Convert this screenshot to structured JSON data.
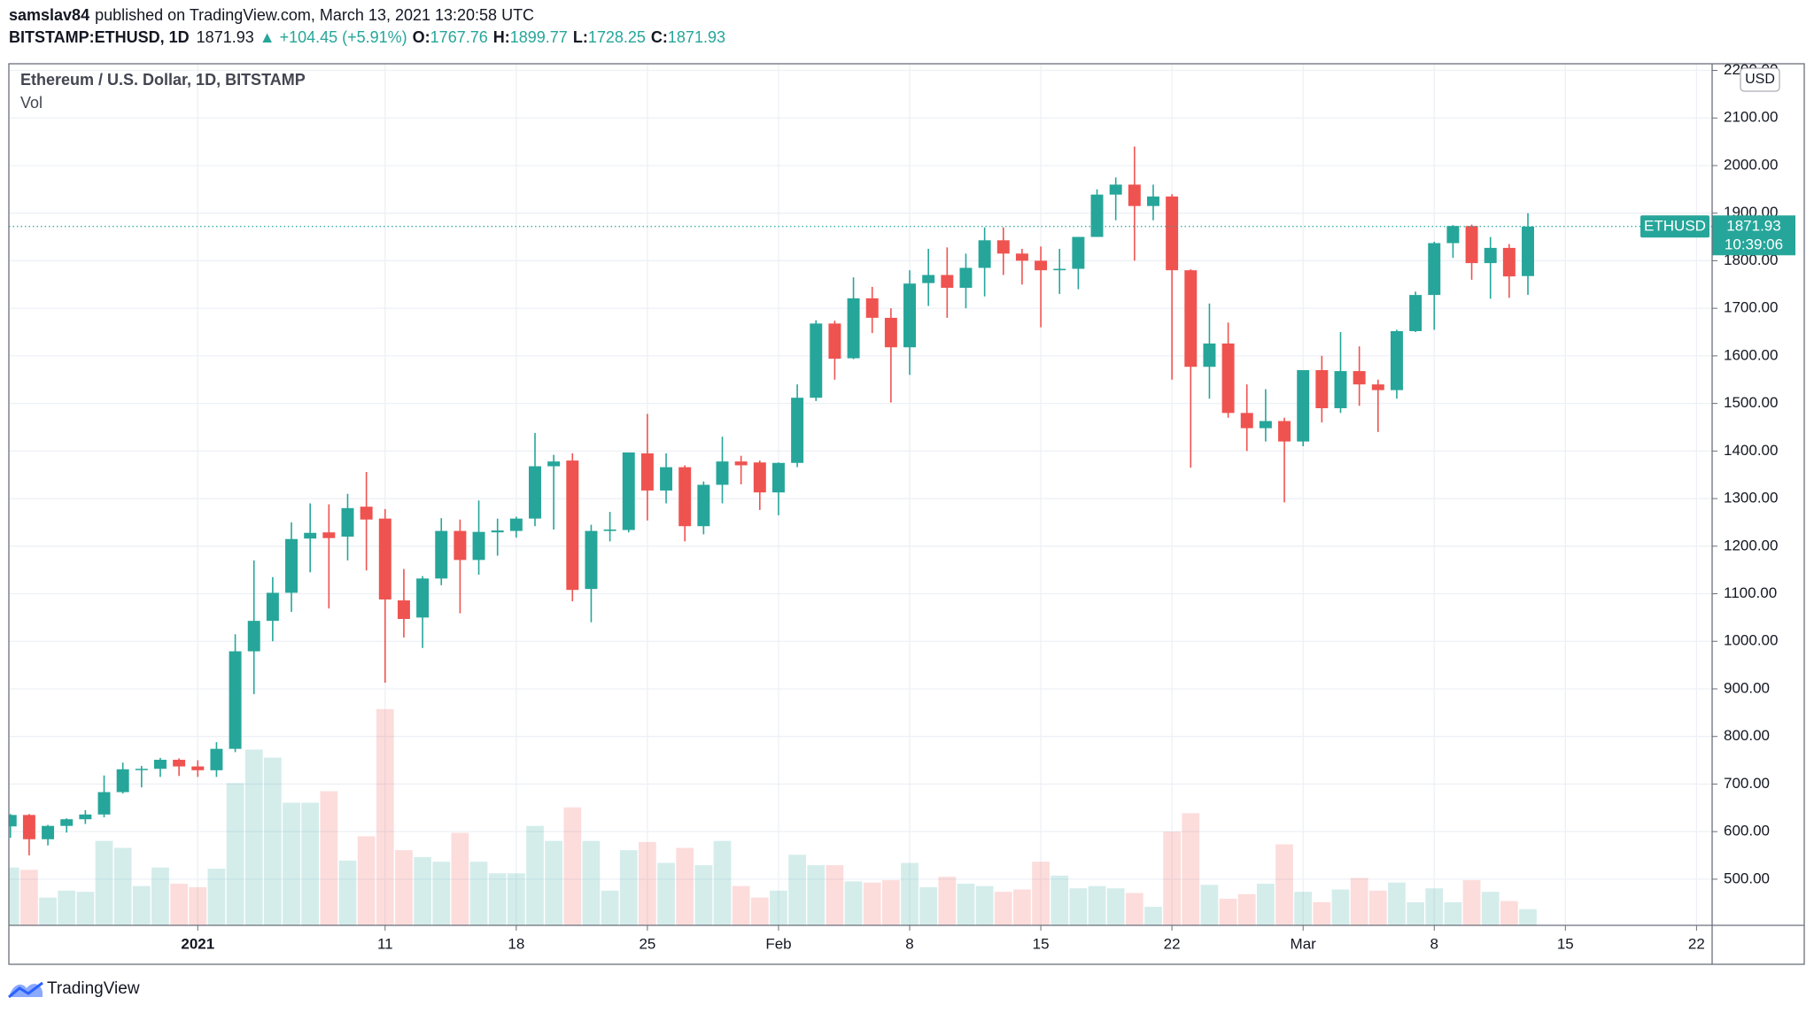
{
  "header": {
    "author": "samslav84",
    "published": "published on TradingView.com, March 13, 2021 13:20:58 UTC",
    "symbol": "BITSTAMP:ETHUSD, 1D",
    "change": "▲ +104.45 (+5.91%)",
    "o": "O:",
    "h": "H:",
    "l": "L:",
    "c": "C:"
  },
  "footer": {
    "brand": "TradingView"
  },
  "chart_data": {
    "type": "candlestick",
    "title": "Ethereum / U.S. Dollar, 1D, BITSTAMP",
    "x": [
      "2020-12-22",
      "2020-12-23",
      "2020-12-24",
      "2020-12-25",
      "2020-12-26",
      "2020-12-27",
      "2020-12-28",
      "2020-12-29",
      "2020-12-30",
      "2020-12-31",
      "2021-01-01",
      "2021-01-02",
      "2021-01-03",
      "2021-01-04",
      "2021-01-05",
      "2021-01-06",
      "2021-01-07",
      "2021-01-08",
      "2021-01-09",
      "2021-01-10",
      "2021-01-11",
      "2021-01-12",
      "2021-01-13",
      "2021-01-14",
      "2021-01-15",
      "2021-01-16",
      "2021-01-17",
      "2021-01-18",
      "2021-01-19",
      "2021-01-20",
      "2021-01-21",
      "2021-01-22",
      "2021-01-23",
      "2021-01-24",
      "2021-01-25",
      "2021-01-26",
      "2021-01-27",
      "2021-01-28",
      "2021-01-29",
      "2021-01-30",
      "2021-01-31",
      "2021-02-01",
      "2021-02-02",
      "2021-02-03",
      "2021-02-04",
      "2021-02-05",
      "2021-02-06",
      "2021-02-07",
      "2021-02-08",
      "2021-02-09",
      "2021-02-10",
      "2021-02-11",
      "2021-02-12",
      "2021-02-13",
      "2021-02-14",
      "2021-02-15",
      "2021-02-16",
      "2021-02-17",
      "2021-02-18",
      "2021-02-19",
      "2021-02-20",
      "2021-02-21",
      "2021-02-22",
      "2021-02-23",
      "2021-02-24",
      "2021-02-25",
      "2021-02-26",
      "2021-02-27",
      "2021-02-28",
      "2021-03-01",
      "2021-03-02",
      "2021-03-03",
      "2021-03-04",
      "2021-03-05",
      "2021-03-06",
      "2021-03-07",
      "2021-03-08",
      "2021-03-09",
      "2021-03-10",
      "2021-03-11",
      "2021-03-12",
      "2021-03-13"
    ],
    "open": [
      611,
      635,
      584,
      612,
      626,
      636,
      683,
      731,
      732,
      751,
      737,
      729,
      774,
      979,
      1043,
      1102,
      1216,
      1229,
      1220,
      1283,
      1258,
      1086,
      1050,
      1132,
      1232,
      1171,
      1229,
      1232,
      1258,
      1368,
      1380,
      1110,
      1232,
      1234,
      1395,
      1317,
      1366,
      1242,
      1329,
      1378,
      1376,
      1313,
      1375,
      1512,
      1668,
      1595,
      1721,
      1680,
      1618,
      1753,
      1770,
      1743,
      1785,
      1843,
      1815,
      1800,
      1780,
      1783,
      1850,
      1939,
      1960,
      1915,
      1935,
      1780,
      1577,
      1626,
      1480,
      1448,
      1463,
      1420,
      1570,
      1490,
      1568,
      1540,
      1528,
      1652,
      1728,
      1837,
      1873,
      1795,
      1827,
      1767.76
    ],
    "high": [
      637,
      637,
      614,
      628,
      645,
      718,
      745,
      738,
      755,
      754,
      750,
      788,
      1015,
      1170,
      1135,
      1250,
      1290,
      1288,
      1310,
      1356,
      1278,
      1152,
      1137,
      1259,
      1256,
      1296,
      1258,
      1262,
      1438,
      1392,
      1395,
      1245,
      1272,
      1397,
      1478,
      1395,
      1370,
      1336,
      1430,
      1390,
      1380,
      1376,
      1540,
      1675,
      1674,
      1765,
      1745,
      1700,
      1780,
      1825,
      1828,
      1815,
      1870,
      1870,
      1825,
      1830,
      1825,
      1850,
      1950,
      1975,
      2040,
      1960,
      1940,
      1782,
      1710,
      1670,
      1540,
      1530,
      1470,
      1570,
      1600,
      1650,
      1620,
      1550,
      1655,
      1735,
      1840,
      1875,
      1876,
      1850,
      1835,
      1899.77
    ],
    "low": [
      587,
      550,
      571,
      598,
      616,
      630,
      680,
      693,
      715,
      717,
      715,
      715,
      767,
      889,
      1000,
      1062,
      1145,
      1069,
      1170,
      1149,
      913,
      1008,
      986,
      1118,
      1059,
      1140,
      1180,
      1218,
      1242,
      1235,
      1084,
      1040,
      1210,
      1229,
      1254,
      1290,
      1210,
      1225,
      1290,
      1330,
      1276,
      1265,
      1366,
      1505,
      1550,
      1593,
      1648,
      1502,
      1560,
      1705,
      1680,
      1700,
      1725,
      1770,
      1750,
      1660,
      1730,
      1740,
      1850,
      1885,
      1800,
      1885,
      1550,
      1365,
      1510,
      1470,
      1400,
      1420,
      1292,
      1410,
      1460,
      1480,
      1495,
      1440,
      1510,
      1650,
      1655,
      1806,
      1760,
      1720,
      1722,
      1728.25
    ],
    "close": [
      635,
      584,
      612,
      626,
      636,
      683,
      731,
      732,
      751,
      737,
      729,
      774,
      979,
      1043,
      1102,
      1215,
      1228,
      1217,
      1280,
      1256,
      1088,
      1047,
      1132,
      1232,
      1171,
      1230,
      1233,
      1258,
      1368,
      1378,
      1108,
      1232,
      1235,
      1397,
      1317,
      1366,
      1242,
      1329,
      1378,
      1370,
      1313,
      1375,
      1512,
      1668,
      1594,
      1721,
      1680,
      1618,
      1752,
      1770,
      1743,
      1785,
      1843,
      1815,
      1800,
      1780,
      1783,
      1850,
      1939,
      1960,
      1915,
      1935,
      1780,
      1577,
      1626,
      1480,
      1448,
      1463,
      1420,
      1570,
      1490,
      1568,
      1540,
      1528,
      1652,
      1728,
      1837,
      1873,
      1795,
      1827,
      1767,
      1871.93
    ],
    "volume": {
      "name": "Vol",
      "axis": "y2",
      "values": [
        50000,
        48000,
        24000,
        30000,
        29000,
        73000,
        67000,
        34000,
        50000,
        36000,
        33000,
        49000,
        123000,
        152000,
        145000,
        106000,
        106000,
        116000,
        56000,
        77000,
        187000,
        65000,
        59000,
        55000,
        80000,
        55000,
        45000,
        45000,
        86000,
        73000,
        102000,
        73000,
        30000,
        65000,
        72000,
        54000,
        67000,
        52000,
        73000,
        34000,
        24000,
        30000,
        61000,
        52000,
        52000,
        38000,
        37000,
        39000,
        54000,
        33000,
        42000,
        36000,
        34000,
        29000,
        31000,
        55000,
        43000,
        32000,
        34000,
        32000,
        28000,
        16000,
        81000,
        97000,
        35000,
        23000,
        27000,
        36000,
        70000,
        29000,
        20000,
        31000,
        41000,
        30000,
        37000,
        20000,
        32000,
        20000,
        39000,
        29000,
        21000,
        14000
      ]
    },
    "up_color": "#26a69a",
    "down_color": "#ef5350",
    "xlim": [
      "2020-12-21T22:00:00Z",
      "2021-03-22T20:00:00Z"
    ],
    "xticks": [
      {
        "value": "2021-01-01",
        "label": "2021"
      },
      {
        "value": "2021-01-11",
        "label": "11"
      },
      {
        "value": "2021-01-18",
        "label": "18"
      },
      {
        "value": "2021-01-25",
        "label": "25"
      },
      {
        "value": "2021-02-01",
        "label": "Feb"
      },
      {
        "value": "2021-02-08",
        "label": "8"
      },
      {
        "value": "2021-02-15",
        "label": "15"
      },
      {
        "value": "2021-02-22",
        "label": "22"
      },
      {
        "value": "2021-03-01",
        "label": "Mar"
      },
      {
        "value": "2021-03-08",
        "label": "8"
      },
      {
        "value": "2021-03-15",
        "label": "15"
      },
      {
        "value": "2021-03-22",
        "label": "22"
      }
    ],
    "ylim": [
      403,
      2214
    ],
    "yticks": [
      {
        "value": 500,
        "label": "500.00"
      },
      {
        "value": 600,
        "label": "600.00"
      },
      {
        "value": 700,
        "label": "700.00"
      },
      {
        "value": 800,
        "label": "800.00"
      },
      {
        "value": 900,
        "label": "900.00"
      },
      {
        "value": 1000,
        "label": "1000.00"
      },
      {
        "value": 1100,
        "label": "1100.00"
      },
      {
        "value": 1200,
        "label": "1200.00"
      },
      {
        "value": 1300,
        "label": "1300.00"
      },
      {
        "value": 1400,
        "label": "1400.00"
      },
      {
        "value": 1500,
        "label": "1500.00"
      },
      {
        "value": 1600,
        "label": "1600.00"
      },
      {
        "value": 1700,
        "label": "1700.00"
      },
      {
        "value": 1800,
        "label": "1800.00"
      },
      {
        "value": 1900,
        "label": "1900.00"
      },
      {
        "value": 2000,
        "label": "2000.00"
      },
      {
        "value": 2100,
        "label": "2100.00"
      },
      {
        "value": 2200,
        "label": "2200.00"
      }
    ],
    "y2lim": [
      0,
      745000
    ],
    "grid": true,
    "last_price_label": "ETHUSD",
    "countdown": "10:39:06",
    "currency": "USD"
  }
}
